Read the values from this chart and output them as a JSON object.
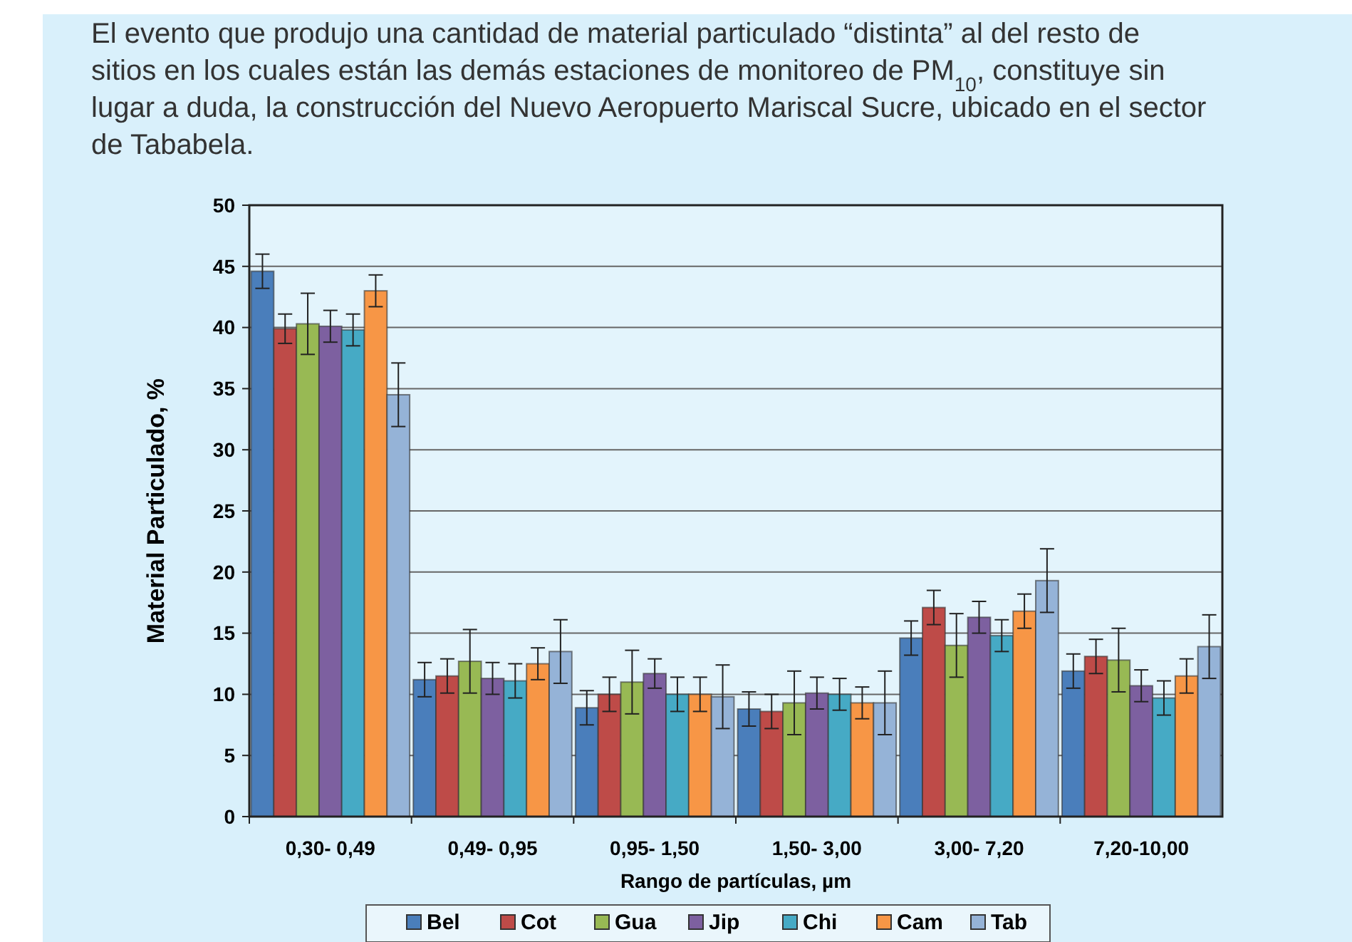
{
  "chart_data": {
    "type": "bar",
    "title": "El evento que produjo una cantidad de material particulado “distinta” al del resto de sitios en los cuales están las demás estaciones de monitoreo de PM$_{10}$, constituye sin lugar a duda, la construcción del Nuevo Aeropuerto Mariscal Sucre, ubicado en el sector de Tababela.",
    "xlabel": "Rango de partículas, µm",
    "ylabel": "Material Particulado, %",
    "categories": [
      "0,30- 0,49",
      "0,49- 0,95",
      "0,95- 1,50",
      "1,50- 3,00",
      "3,00- 7,20",
      "7,20-10,00"
    ],
    "series": [
      {
        "name": "Bel",
        "color": "#4a7ebb",
        "values": [
          44.6,
          11.2,
          8.9,
          8.8,
          14.6,
          11.9
        ],
        "errors": [
          1.4,
          1.4,
          1.4,
          1.4,
          1.4,
          1.4
        ]
      },
      {
        "name": "Cot",
        "color": "#be4b48",
        "values": [
          39.9,
          11.5,
          10,
          8.6,
          17.1,
          13.1
        ],
        "errors": [
          1.2,
          1.4,
          1.4,
          1.4,
          1.4,
          1.4
        ]
      },
      {
        "name": "Gua",
        "color": "#98b954",
        "values": [
          40.3,
          12.7,
          11,
          9.3,
          14,
          12.8
        ],
        "errors": [
          2.5,
          2.6,
          2.6,
          2.6,
          2.6,
          2.6
        ]
      },
      {
        "name": "Jip",
        "color": "#7d60a0",
        "values": [
          40.1,
          11.3,
          11.7,
          10.1,
          16.3,
          10.7
        ],
        "errors": [
          1.3,
          1.3,
          1.2,
          1.3,
          1.3,
          1.3
        ]
      },
      {
        "name": "Chi",
        "color": "#46aac5",
        "values": [
          39.8,
          11.1,
          10,
          10,
          14.8,
          9.7
        ],
        "errors": [
          1.3,
          1.4,
          1.4,
          1.3,
          1.3,
          1.4
        ]
      },
      {
        "name": "Cam",
        "color": "#f79646",
        "values": [
          43,
          12.5,
          10,
          9.3,
          16.8,
          11.5
        ],
        "errors": [
          1.3,
          1.3,
          1.4,
          1.3,
          1.4,
          1.4
        ]
      },
      {
        "name": "Tab",
        "color": "#95b3d7",
        "values": [
          34.5,
          13.5,
          9.8,
          9.3,
          19.3,
          13.9
        ],
        "errors": [
          2.6,
          2.6,
          2.6,
          2.6,
          2.6,
          2.6
        ]
      }
    ],
    "ylim": [
      0,
      50
    ],
    "yticks": [
      0,
      5,
      10,
      15,
      20,
      25,
      30,
      35,
      40,
      45,
      50
    ],
    "grid": "y",
    "legend": "bottom"
  }
}
